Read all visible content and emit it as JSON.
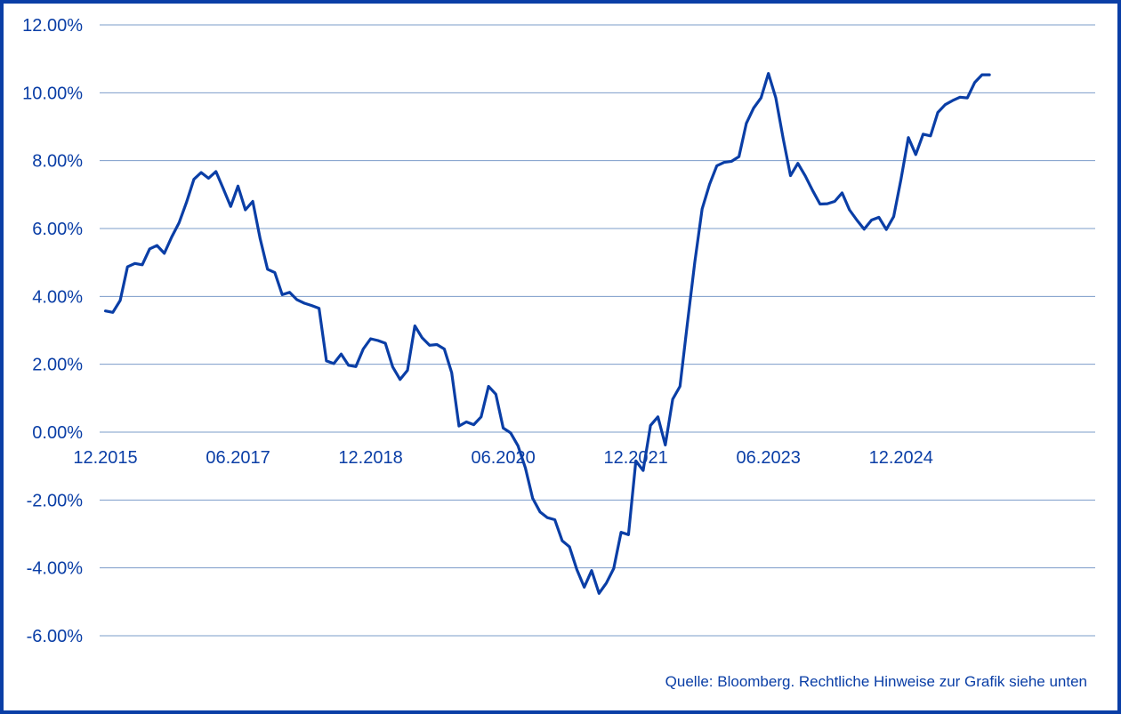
{
  "chart_data": {
    "type": "line",
    "title": "",
    "xlabel": "",
    "ylabel": "",
    "ylim": [
      -6,
      12
    ],
    "y_ticks": [
      "12.00%",
      "10.00%",
      "8.00%",
      "6.00%",
      "4.00%",
      "2.00%",
      "0.00%",
      "-2.00%",
      "-4.00%",
      "-6.00%"
    ],
    "x_ticks": [
      "12.2015",
      "06.2017",
      "12.2018",
      "06.2020",
      "12.2021",
      "06.2023",
      "12.2024"
    ],
    "grid": "horizontal",
    "legend": "none",
    "series": [
      {
        "x": [
          "2015-12",
          "2016-01",
          "2016-02",
          "2016-03",
          "2016-04",
          "2016-05",
          "2016-06",
          "2016-07",
          "2016-08",
          "2016-09",
          "2016-10",
          "2016-11",
          "2016-12",
          "2017-01",
          "2017-02",
          "2017-03",
          "2017-04",
          "2017-05",
          "2017-06",
          "2017-07",
          "2017-08",
          "2017-09",
          "2017-10",
          "2017-11",
          "2017-12",
          "2018-01",
          "2018-02",
          "2018-03",
          "2018-04",
          "2018-05",
          "2018-06",
          "2018-07",
          "2018-08",
          "2018-09",
          "2018-10",
          "2018-11",
          "2018-12",
          "2019-01",
          "2019-02",
          "2019-03",
          "2019-04",
          "2019-05",
          "2019-06",
          "2019-07",
          "2019-08",
          "2019-09",
          "2019-10",
          "2019-11",
          "2019-12",
          "2020-01",
          "2020-02",
          "2020-03",
          "2020-04",
          "2020-05",
          "2020-06",
          "2020-07",
          "2020-08",
          "2020-09",
          "2020-10",
          "2020-11",
          "2020-12",
          "2021-01",
          "2021-02",
          "2021-03",
          "2021-04",
          "2021-05",
          "2021-06",
          "2021-07",
          "2021-08",
          "2021-09",
          "2021-10",
          "2021-11",
          "2021-12",
          "2022-01",
          "2022-02",
          "2022-03",
          "2022-04",
          "2022-05",
          "2022-06",
          "2022-07",
          "2022-08",
          "2022-09",
          "2022-10",
          "2022-11",
          "2022-12",
          "2023-01",
          "2023-02",
          "2023-03",
          "2023-04",
          "2023-05",
          "2023-06",
          "2023-07",
          "2023-08",
          "2023-09",
          "2023-10",
          "2023-11",
          "2023-12",
          "2024-01",
          "2024-02",
          "2024-03",
          "2024-04",
          "2024-05",
          "2024-06",
          "2024-07",
          "2024-08",
          "2024-09",
          "2024-10",
          "2024-11",
          "2024-12",
          "2025-01",
          "2025-02",
          "2025-03",
          "2025-04",
          "2025-05",
          "2025-06",
          "2025-07",
          "2025-08",
          "2025-09",
          "2025-10",
          "2025-11",
          "2025-12"
        ],
        "values": [
          3.57,
          3.53,
          3.88,
          4.87,
          4.97,
          4.93,
          5.4,
          5.5,
          5.27,
          5.75,
          6.17,
          6.77,
          7.45,
          7.65,
          7.48,
          7.68,
          7.17,
          6.65,
          7.25,
          6.55,
          6.8,
          5.7,
          4.8,
          4.7,
          4.05,
          4.12,
          3.9,
          3.8,
          3.73,
          3.65,
          2.1,
          2.02,
          2.3,
          1.97,
          1.93,
          2.45,
          2.75,
          2.7,
          2.62,
          1.92,
          1.55,
          1.82,
          3.13,
          2.78,
          2.56,
          2.58,
          2.45,
          1.75,
          0.18,
          0.3,
          0.22,
          0.45,
          1.35,
          1.12,
          0.12,
          -0.02,
          -0.4,
          -1.05,
          -1.95,
          -2.35,
          -2.52,
          -2.58,
          -3.2,
          -3.38,
          -4.05,
          -4.57,
          -4.08,
          -4.75,
          -4.45,
          -4.02,
          -2.95,
          -3.02,
          -0.85,
          -1.13,
          0.2,
          0.45,
          -0.38,
          0.97,
          1.35,
          3.2,
          5.0,
          6.58,
          7.3,
          7.85,
          7.95,
          7.98,
          8.12,
          9.1,
          9.55,
          9.85,
          10.57,
          9.85,
          8.65,
          7.56,
          7.92,
          7.55,
          7.12,
          6.72,
          6.73,
          6.8,
          7.05,
          6.55,
          6.25,
          5.98,
          6.25,
          6.33,
          5.97,
          6.35,
          7.45,
          8.68,
          8.18,
          8.78,
          8.73,
          9.42,
          9.65,
          9.77,
          9.87,
          9.85,
          10.3,
          10.53,
          10.53
        ]
      }
    ],
    "colors": {
      "line": "#0a3ea6",
      "grid": "#7b9cc9",
      "text": "#0a3ea6",
      "border": "#0a3ea6"
    }
  },
  "source_note": "Quelle: Bloomberg. Rechtliche Hinweise zur Grafik siehe unten"
}
